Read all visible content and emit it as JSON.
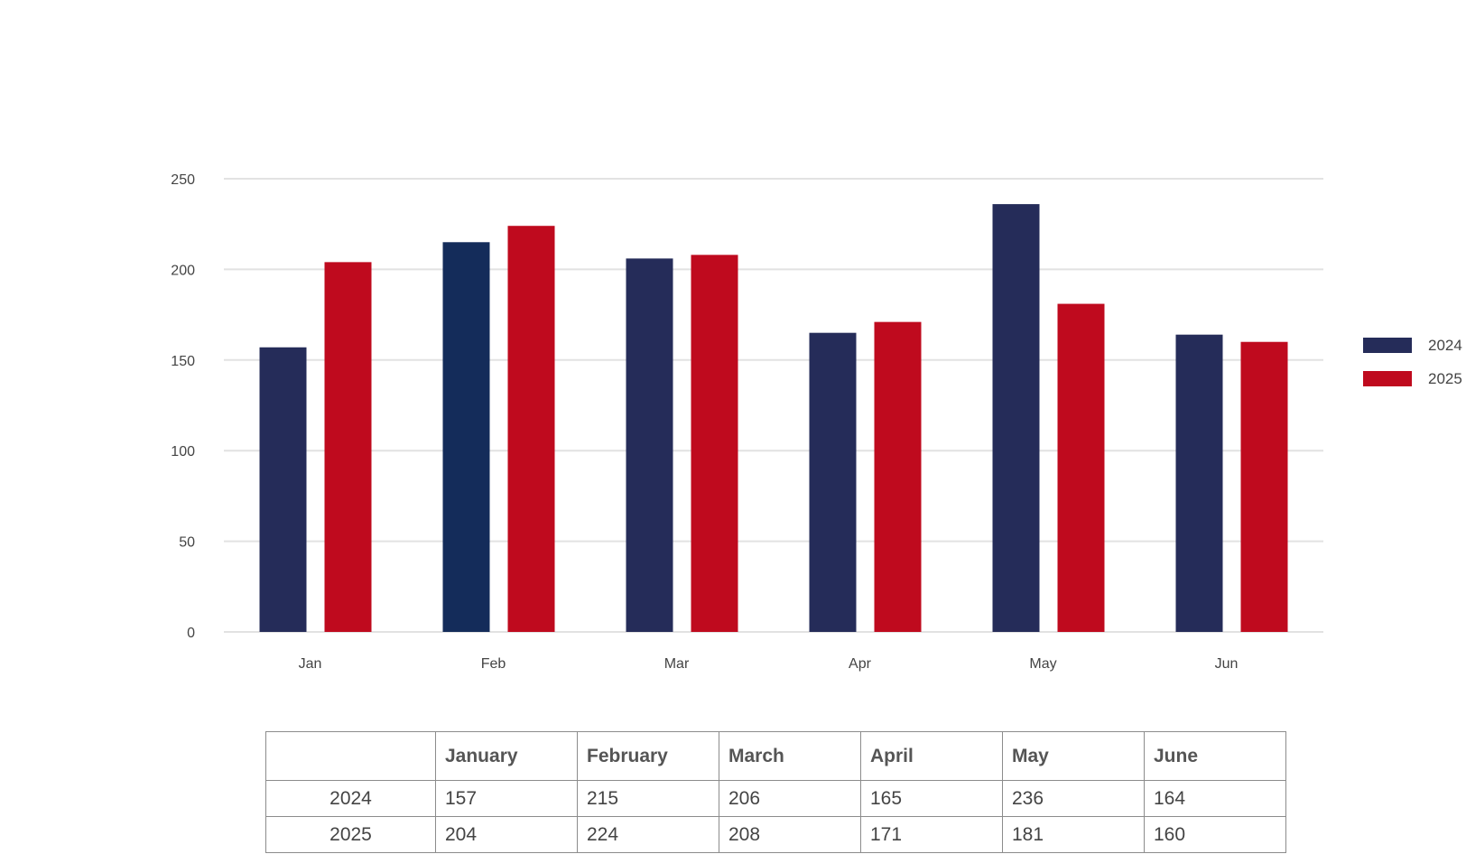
{
  "chart_data": {
    "type": "bar",
    "categories": [
      "Jan",
      "Feb",
      "Mar",
      "Apr",
      "May",
      "Jun"
    ],
    "series": [
      {
        "name": "2024",
        "values": [
          157,
          215,
          206,
          165,
          236,
          164
        ],
        "color": "#252C59"
      },
      {
        "name": "2025",
        "values": [
          204,
          224,
          208,
          171,
          181,
          160
        ],
        "color": "#BF0A1E"
      }
    ],
    "ylim": [
      0,
      250
    ],
    "yticks": [
      0,
      50,
      100,
      150,
      200,
      250
    ],
    "grid": true,
    "legend": "right",
    "title": "",
    "xlabel": "",
    "ylabel": "",
    "highlight": {
      "series": 0,
      "index": 1,
      "color": "#142C5A"
    }
  },
  "table": {
    "headers": [
      "",
      "January",
      "February",
      "March",
      "April",
      "May",
      "June"
    ],
    "rows": [
      {
        "label": "2024",
        "values": [
          "157",
          "215",
          "206",
          "165",
          "236",
          "164"
        ]
      },
      {
        "label": "2025",
        "values": [
          "204",
          "224",
          "208",
          "171",
          "181",
          "160"
        ]
      }
    ]
  }
}
